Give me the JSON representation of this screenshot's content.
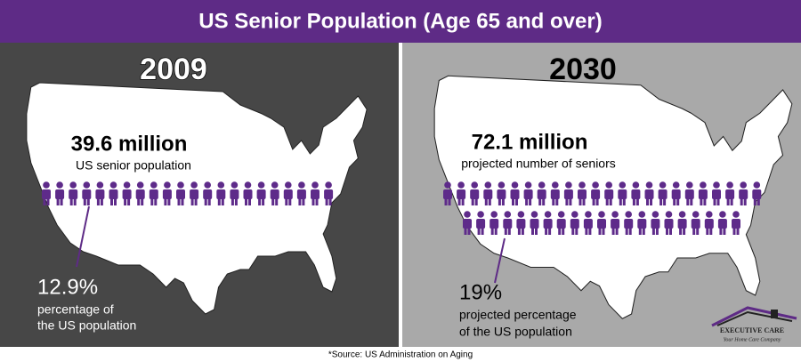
{
  "header": {
    "title": "US Senior Population (Age 65 and over)"
  },
  "panels": [
    {
      "year": "2009",
      "count": "39.6 million",
      "count_label": "US senior population",
      "percent": "12.9%",
      "percent_label": [
        "percentage of",
        "the US population"
      ]
    },
    {
      "year": "2030",
      "count": "72.1 million",
      "count_label": "projected number of seniors",
      "percent": "19%",
      "percent_label": [
        "projected percentage",
        "of the US population"
      ]
    }
  ],
  "logo": {
    "name": "EXECUTIVE CARE",
    "tagline": "Your Home Care Company"
  },
  "footer": {
    "source": "*Source: US Administration on Aging"
  }
}
